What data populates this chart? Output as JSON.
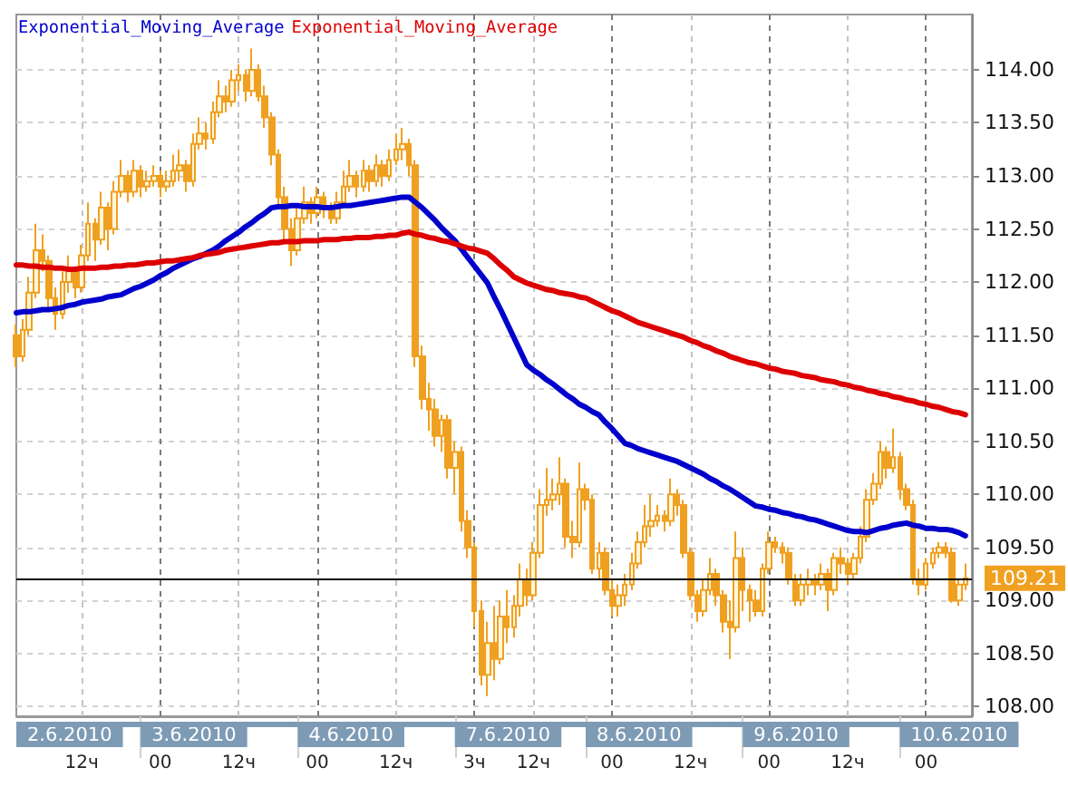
{
  "chart_data": {
    "type": "candlestick",
    "color": "#f0a020",
    "categories": [
      null,
      null,
      null,
      null,
      null,
      null,
      null,
      null,
      null,
      null,
      "12ч",
      null,
      null,
      null,
      null,
      null,
      null,
      null,
      null,
      null,
      null,
      null,
      "00",
      null,
      null,
      null,
      null,
      null,
      null,
      null,
      null,
      null,
      null,
      null,
      "12ч",
      null,
      null,
      null,
      null,
      null,
      null,
      null,
      null,
      null,
      null,
      null,
      "00",
      null,
      null,
      null,
      null,
      null,
      null,
      null,
      null,
      null,
      null,
      null,
      "12ч",
      null,
      null,
      null,
      null,
      null,
      null,
      null,
      null,
      null,
      null,
      null,
      "3ч",
      null,
      null,
      null,
      null,
      null,
      null,
      null,
      null,
      "12ч",
      null,
      null,
      null,
      null,
      null,
      null,
      null,
      null,
      null,
      null,
      null,
      "00",
      null,
      null,
      null,
      null,
      null,
      null,
      null,
      null,
      null,
      null,
      null,
      "12ч",
      null,
      null,
      null,
      null,
      null,
      null,
      null,
      null,
      null,
      null,
      null,
      "00",
      null,
      null,
      null,
      null,
      null,
      null,
      null,
      null,
      null,
      null,
      null,
      "12ч",
      null,
      null,
      null,
      null,
      null,
      null,
      null,
      null,
      null,
      null,
      null,
      "00",
      null,
      null,
      null,
      null,
      null,
      null,
      null
    ],
    "ohlc": [
      [
        111.5,
        111.6,
        111.2,
        111.3
      ],
      [
        111.3,
        111.65,
        111.25,
        111.55
      ],
      [
        111.55,
        112.05,
        111.5,
        111.9
      ],
      [
        111.9,
        112.55,
        111.85,
        112.3
      ],
      [
        112.3,
        112.45,
        112.1,
        112.2
      ],
      [
        112.2,
        112.25,
        111.75,
        111.85
      ],
      [
        111.85,
        111.95,
        111.55,
        111.7
      ],
      [
        111.7,
        112.1,
        111.65,
        112.0
      ],
      [
        112.0,
        112.25,
        111.9,
        112.1
      ],
      [
        112.1,
        112.15,
        111.85,
        111.95
      ],
      [
        111.95,
        112.35,
        111.9,
        112.25
      ],
      [
        112.25,
        112.75,
        112.2,
        112.55
      ],
      [
        112.55,
        112.6,
        112.2,
        112.4
      ],
      [
        112.4,
        112.85,
        112.35,
        112.7
      ],
      [
        112.7,
        112.75,
        112.3,
        112.5
      ],
      [
        112.5,
        112.95,
        112.45,
        112.85
      ],
      [
        112.85,
        113.15,
        112.8,
        113.0
      ],
      [
        113.0,
        113.05,
        112.75,
        112.85
      ],
      [
        112.85,
        113.15,
        112.8,
        113.05
      ],
      [
        113.05,
        113.1,
        112.8,
        112.9
      ],
      [
        112.9,
        113.05,
        112.85,
        112.95
      ],
      [
        112.95,
        113.1,
        112.9,
        113.0
      ],
      [
        113.0,
        113.05,
        112.8,
        112.9
      ],
      [
        112.9,
        113.05,
        112.85,
        112.95
      ],
      [
        112.95,
        113.2,
        112.9,
        113.05
      ],
      [
        113.05,
        113.25,
        112.95,
        113.1
      ],
      [
        113.1,
        113.15,
        112.85,
        112.95
      ],
      [
        112.95,
        113.4,
        112.9,
        113.3
      ],
      [
        113.3,
        113.55,
        113.25,
        113.4
      ],
      [
        113.4,
        113.5,
        113.25,
        113.35
      ],
      [
        113.35,
        113.7,
        113.3,
        113.6
      ],
      [
        113.6,
        113.9,
        113.55,
        113.75
      ],
      [
        113.75,
        113.85,
        113.6,
        113.7
      ],
      [
        113.7,
        114.0,
        113.65,
        113.9
      ],
      [
        113.9,
        114.05,
        113.8,
        113.95
      ],
      [
        113.95,
        114.0,
        113.7,
        113.8
      ],
      [
        113.8,
        114.2,
        113.75,
        114.0
      ],
      [
        114.0,
        114.05,
        113.7,
        113.75
      ],
      [
        113.75,
        113.85,
        113.45,
        113.55
      ],
      [
        113.55,
        113.6,
        113.1,
        113.2
      ],
      [
        113.2,
        113.25,
        112.7,
        112.8
      ],
      [
        112.8,
        112.9,
        112.4,
        112.5
      ],
      [
        112.5,
        112.6,
        112.15,
        112.3
      ],
      [
        112.3,
        112.7,
        112.25,
        112.6
      ],
      [
        112.6,
        112.9,
        112.55,
        112.75
      ],
      [
        112.75,
        112.8,
        112.55,
        112.65
      ],
      [
        112.65,
        112.9,
        112.6,
        112.8
      ],
      [
        112.8,
        112.85,
        112.6,
        112.7
      ],
      [
        112.7,
        112.75,
        112.55,
        112.6
      ],
      [
        112.6,
        112.85,
        112.55,
        112.75
      ],
      [
        112.75,
        113.05,
        112.7,
        112.9
      ],
      [
        112.9,
        113.15,
        112.85,
        113.0
      ],
      [
        113.0,
        113.05,
        112.8,
        112.9
      ],
      [
        112.9,
        113.15,
        112.85,
        113.05
      ],
      [
        113.05,
        113.1,
        112.85,
        112.95
      ],
      [
        112.95,
        113.2,
        112.9,
        113.1
      ],
      [
        113.1,
        113.15,
        112.9,
        113.0
      ],
      [
        113.0,
        113.25,
        112.95,
        113.15
      ],
      [
        113.15,
        113.4,
        113.1,
        113.25
      ],
      [
        113.25,
        113.45,
        113.15,
        113.3
      ],
      [
        113.3,
        113.35,
        113.0,
        113.1
      ],
      [
        113.1,
        113.15,
        111.2,
        111.3
      ],
      [
        111.3,
        111.4,
        110.8,
        110.9
      ],
      [
        110.9,
        111.05,
        110.6,
        110.8
      ],
      [
        110.8,
        110.9,
        110.45,
        110.55
      ],
      [
        110.55,
        110.75,
        110.4,
        110.7
      ],
      [
        110.7,
        110.75,
        110.15,
        110.25
      ],
      [
        110.25,
        110.5,
        110.0,
        110.4
      ],
      [
        110.4,
        110.45,
        109.65,
        109.75
      ],
      [
        109.75,
        109.85,
        109.4,
        109.5
      ],
      [
        109.5,
        109.55,
        108.75,
        108.9
      ],
      [
        108.9,
        109.0,
        108.2,
        108.3
      ],
      [
        108.3,
        108.8,
        108.1,
        108.6
      ],
      [
        108.6,
        108.95,
        108.25,
        108.45
      ],
      [
        108.45,
        109.0,
        108.4,
        108.85
      ],
      [
        108.85,
        109.1,
        108.6,
        108.75
      ],
      [
        108.75,
        109.05,
        108.65,
        108.95
      ],
      [
        108.95,
        109.35,
        108.85,
        109.2
      ],
      [
        109.2,
        109.3,
        108.95,
        109.05
      ],
      [
        109.05,
        109.55,
        109.0,
        109.45
      ],
      [
        109.45,
        110.05,
        109.4,
        109.9
      ],
      [
        109.9,
        110.25,
        109.8,
        109.95
      ],
      [
        109.95,
        110.15,
        109.85,
        110.0
      ],
      [
        110.0,
        110.35,
        109.9,
        110.1
      ],
      [
        110.1,
        110.15,
        109.5,
        109.6
      ],
      [
        109.6,
        109.75,
        109.4,
        109.55
      ],
      [
        109.55,
        110.3,
        109.5,
        110.05
      ],
      [
        110.05,
        110.1,
        109.85,
        109.95
      ],
      [
        109.95,
        110.0,
        109.25,
        109.3
      ],
      [
        109.3,
        109.55,
        109.2,
        109.45
      ],
      [
        109.45,
        109.5,
        109.05,
        109.1
      ],
      [
        109.1,
        109.2,
        108.85,
        108.95
      ],
      [
        108.95,
        109.15,
        108.85,
        109.05
      ],
      [
        109.05,
        109.25,
        108.95,
        109.15
      ],
      [
        109.15,
        109.45,
        109.1,
        109.35
      ],
      [
        109.35,
        109.65,
        109.3,
        109.55
      ],
      [
        109.55,
        109.9,
        109.5,
        109.7
      ],
      [
        109.7,
        110.0,
        109.6,
        109.75
      ],
      [
        109.75,
        109.9,
        109.7,
        109.8
      ],
      [
        109.8,
        109.85,
        109.65,
        109.75
      ],
      [
        109.75,
        110.15,
        109.7,
        110.0
      ],
      [
        110.0,
        110.05,
        109.8,
        109.9
      ],
      [
        109.9,
        109.95,
        109.4,
        109.45
      ],
      [
        109.45,
        109.5,
        109.0,
        109.05
      ],
      [
        109.05,
        109.1,
        108.8,
        108.9
      ],
      [
        108.9,
        109.2,
        108.85,
        109.1
      ],
      [
        109.1,
        109.4,
        109.05,
        109.25
      ],
      [
        109.25,
        109.3,
        108.95,
        109.05
      ],
      [
        109.05,
        109.1,
        108.7,
        108.8
      ],
      [
        108.8,
        109.0,
        108.45,
        108.75
      ],
      [
        108.75,
        109.65,
        108.7,
        109.4
      ],
      [
        109.4,
        109.5,
        108.9,
        109.1
      ],
      [
        109.1,
        109.15,
        108.8,
        109.0
      ],
      [
        109.0,
        109.1,
        108.85,
        108.9
      ],
      [
        108.9,
        109.35,
        108.85,
        109.3
      ],
      [
        109.3,
        109.65,
        109.25,
        109.55
      ],
      [
        109.55,
        109.6,
        109.45,
        109.5
      ],
      [
        109.5,
        109.55,
        109.35,
        109.45
      ],
      [
        109.45,
        109.5,
        109.15,
        109.2
      ],
      [
        109.2,
        109.25,
        108.95,
        109.0
      ],
      [
        109.0,
        109.25,
        108.95,
        109.15
      ],
      [
        109.15,
        109.3,
        109.05,
        109.2
      ],
      [
        109.2,
        109.25,
        109.05,
        109.15
      ],
      [
        109.15,
        109.35,
        109.1,
        109.25
      ],
      [
        109.25,
        109.3,
        108.9,
        109.1
      ],
      [
        109.1,
        109.45,
        109.05,
        109.4
      ],
      [
        109.4,
        109.5,
        109.25,
        109.35
      ],
      [
        109.35,
        109.4,
        109.15,
        109.25
      ],
      [
        109.25,
        109.45,
        109.2,
        109.4
      ],
      [
        109.4,
        109.7,
        109.35,
        109.6
      ],
      [
        109.6,
        110.05,
        109.55,
        109.95
      ],
      [
        109.95,
        110.2,
        109.9,
        110.1
      ],
      [
        110.1,
        110.5,
        110.05,
        110.4
      ],
      [
        110.4,
        110.45,
        110.15,
        110.25
      ],
      [
        110.25,
        110.62,
        110.2,
        110.35
      ],
      [
        110.35,
        110.4,
        109.95,
        110.05
      ],
      [
        110.05,
        110.1,
        109.85,
        109.9
      ],
      [
        109.9,
        109.95,
        109.15,
        109.2
      ],
      [
        109.2,
        109.3,
        109.05,
        109.15
      ],
      [
        109.15,
        109.4,
        109.1,
        109.35
      ],
      [
        109.35,
        109.5,
        109.3,
        109.45
      ],
      [
        109.45,
        109.55,
        109.4,
        109.5
      ],
      [
        109.5,
        109.55,
        109.4,
        109.45
      ],
      [
        109.45,
        109.5,
        108.98,
        109.0
      ],
      [
        109.0,
        109.2,
        108.95,
        109.15
      ],
      [
        109.15,
        109.35,
        109.1,
        109.21
      ],
      null
    ],
    "series": [
      {
        "type": "line",
        "name": "Exponential_Moving_Average",
        "color": "#0000cc",
        "values": [
          111.71,
          111.72,
          111.72,
          111.73,
          111.74,
          111.74,
          111.75,
          111.76,
          111.78,
          111.79,
          111.81,
          111.82,
          111.83,
          111.84,
          111.86,
          111.87,
          111.88,
          111.91,
          111.94,
          111.96,
          111.99,
          112.02,
          112.06,
          112.09,
          112.13,
          112.16,
          112.19,
          112.22,
          112.24,
          112.27,
          112.3,
          112.34,
          112.39,
          112.43,
          112.47,
          112.52,
          112.56,
          112.61,
          112.65,
          112.7,
          112.71,
          112.71,
          112.72,
          112.72,
          112.71,
          112.71,
          112.71,
          112.7,
          112.7,
          112.71,
          112.72,
          112.72,
          112.73,
          112.74,
          112.75,
          112.76,
          112.77,
          112.78,
          112.79,
          112.8,
          112.8,
          112.75,
          112.7,
          112.64,
          112.58,
          112.51,
          112.45,
          112.39,
          112.31,
          112.23,
          112.15,
          112.07,
          111.99,
          111.86,
          111.74,
          111.61,
          111.48,
          111.35,
          111.22,
          111.17,
          111.13,
          111.08,
          111.04,
          110.99,
          110.94,
          110.9,
          110.85,
          110.82,
          110.78,
          110.75,
          110.68,
          110.62,
          110.55,
          110.48,
          110.46,
          110.43,
          110.41,
          110.39,
          110.37,
          110.35,
          110.33,
          110.31,
          110.28,
          110.25,
          110.22,
          110.19,
          110.15,
          110.12,
          110.08,
          110.05,
          110.01,
          109.97,
          109.93,
          109.89,
          109.88,
          109.86,
          109.85,
          109.83,
          109.82,
          109.8,
          109.79,
          109.77,
          109.76,
          109.74,
          109.72,
          109.7,
          109.68,
          109.66,
          109.65,
          109.65,
          109.64,
          109.66,
          109.68,
          109.69,
          109.71,
          109.72,
          109.73,
          109.71,
          109.7,
          109.68,
          109.68,
          109.67,
          109.67,
          109.66,
          109.64,
          109.61,
          null
        ]
      },
      {
        "type": "line",
        "name": "Exponential_Moving_Average",
        "color": "#dd0000",
        "values": [
          112.16,
          112.16,
          112.15,
          112.15,
          112.14,
          112.14,
          112.13,
          112.13,
          112.12,
          112.12,
          112.13,
          112.13,
          112.13,
          112.14,
          112.14,
          112.15,
          112.15,
          112.16,
          112.16,
          112.17,
          112.18,
          112.18,
          112.19,
          112.2,
          112.2,
          112.21,
          112.22,
          112.23,
          112.25,
          112.26,
          112.27,
          112.28,
          112.3,
          112.31,
          112.32,
          112.33,
          112.34,
          112.35,
          112.36,
          112.37,
          112.37,
          112.38,
          112.38,
          112.38,
          112.39,
          112.39,
          112.39,
          112.4,
          112.4,
          112.4,
          112.41,
          112.41,
          112.42,
          112.42,
          112.42,
          112.43,
          112.43,
          112.44,
          112.44,
          112.46,
          112.47,
          112.45,
          112.44,
          112.42,
          112.41,
          112.39,
          112.38,
          112.36,
          112.34,
          112.32,
          112.31,
          112.29,
          112.27,
          112.22,
          112.16,
          112.11,
          112.05,
          112.02,
          111.99,
          111.97,
          111.95,
          111.93,
          111.92,
          111.9,
          111.89,
          111.88,
          111.86,
          111.85,
          111.82,
          111.79,
          111.76,
          111.73,
          111.71,
          111.68,
          111.65,
          111.62,
          111.6,
          111.58,
          111.56,
          111.54,
          111.52,
          111.5,
          111.48,
          111.45,
          111.43,
          111.4,
          111.38,
          111.35,
          111.33,
          111.3,
          111.28,
          111.26,
          111.24,
          111.23,
          111.21,
          111.19,
          111.18,
          111.16,
          111.15,
          111.14,
          111.12,
          111.11,
          111.1,
          111.08,
          111.07,
          111.06,
          111.04,
          111.03,
          111.01,
          111.0,
          110.98,
          110.97,
          110.95,
          110.94,
          110.92,
          110.91,
          110.89,
          110.88,
          110.86,
          110.85,
          110.83,
          110.82,
          110.8,
          110.78,
          110.77,
          110.75,
          null
        ]
      }
    ],
    "ylim": [
      107.91,
      114.52
    ],
    "yticks": [
      {
        "value": 108,
        "label": "108.00"
      },
      {
        "value": 108.5,
        "label": "108.50"
      },
      {
        "value": 109,
        "label": "109.00"
      },
      {
        "value": 109.5,
        "label": "109.50"
      },
      {
        "value": 110,
        "label": "110.00"
      },
      {
        "value": 110.5,
        "label": "110.50"
      },
      {
        "value": 111,
        "label": "111.00"
      },
      {
        "value": 111.5,
        "label": "111.50"
      },
      {
        "value": 112,
        "label": "112.00"
      },
      {
        "value": 112.5,
        "label": "112.50"
      },
      {
        "value": 113,
        "label": "113.00"
      },
      {
        "value": 113.5,
        "label": "113.50"
      },
      {
        "value": 114,
        "label": "114.00"
      }
    ],
    "ref_lines": [
      {
        "axis": "y",
        "value": 109.21,
        "label": "109.21",
        "color": "#000000"
      }
    ],
    "annotations": [
      "2.6.2010",
      "3.6.2010",
      "4.6.2010",
      "7.6.2010",
      "8.6.2010",
      "9.6.2010",
      "10.6.2010"
    ],
    "grid": true,
    "legend": "top left",
    "marker": "none"
  }
}
